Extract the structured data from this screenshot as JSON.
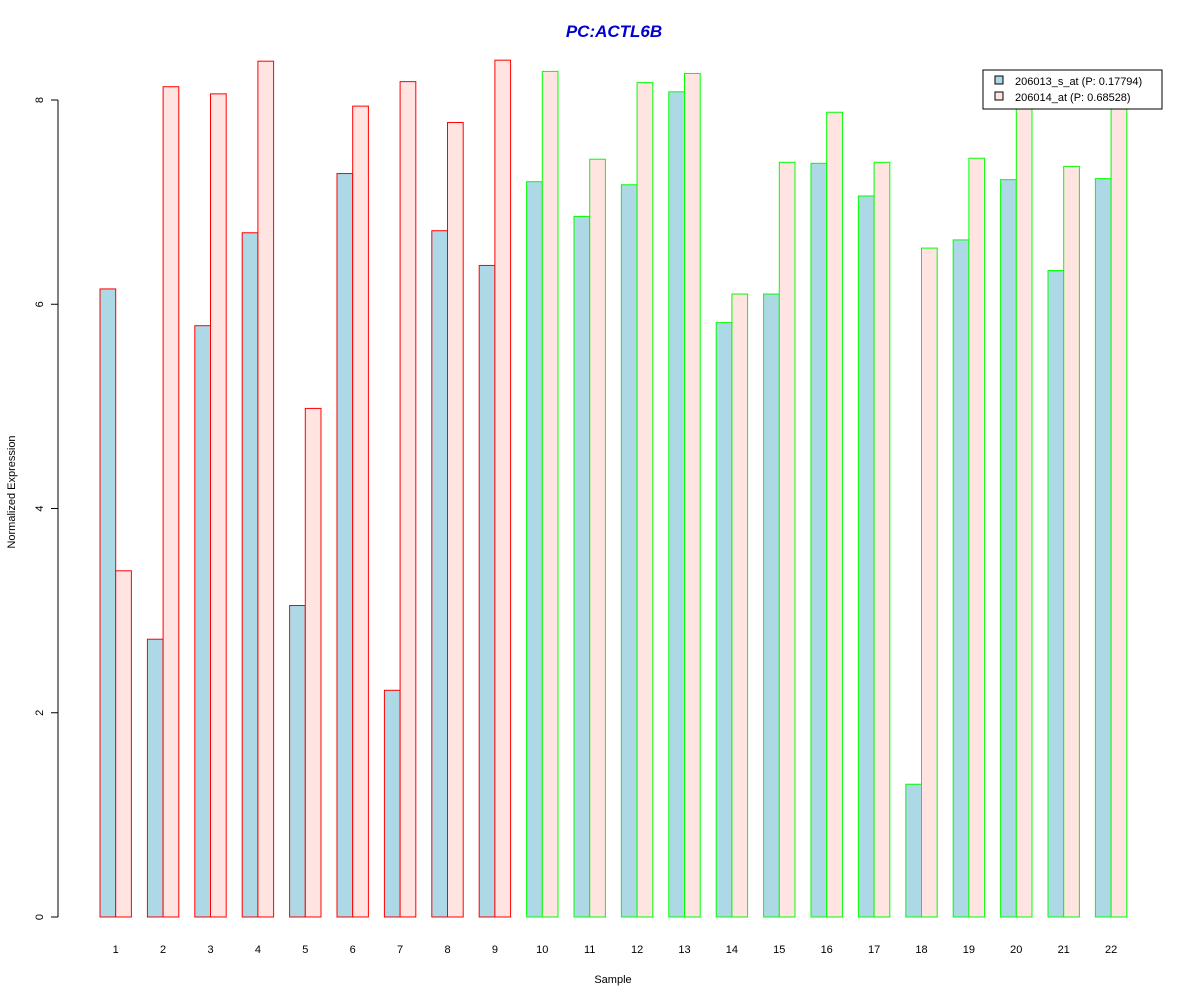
{
  "chart_data": {
    "type": "bar",
    "title": "PC:ACTL6B",
    "xlabel": "Sample",
    "ylabel": "Normalized Expression",
    "ylim": [
      0,
      8
    ],
    "yticks": [
      0,
      2,
      4,
      6,
      8
    ],
    "categories": [
      "1",
      "2",
      "3",
      "4",
      "5",
      "6",
      "7",
      "8",
      "9",
      "10",
      "11",
      "12",
      "13",
      "14",
      "15",
      "16",
      "17",
      "18",
      "19",
      "20",
      "21",
      "22"
    ],
    "series": [
      {
        "name": "206013_s_at (P: 0.17794)",
        "fill": "#add8e6",
        "values": [
          6.15,
          2.72,
          5.79,
          6.7,
          3.05,
          7.28,
          2.22,
          6.72,
          6.38,
          7.2,
          6.86,
          7.17,
          8.08,
          5.82,
          6.1,
          7.38,
          7.06,
          1.3,
          6.63,
          7.22,
          6.33,
          7.23
        ]
      },
      {
        "name": "206014_at (P: 0.68528)",
        "fill": "#ffe4e1",
        "values": [
          3.39,
          8.13,
          8.06,
          8.38,
          4.98,
          7.94,
          8.18,
          7.78,
          8.39,
          8.28,
          7.42,
          8.17,
          8.26,
          6.1,
          7.39,
          7.88,
          7.39,
          6.55,
          7.43,
          8.0,
          7.35,
          7.98
        ]
      }
    ],
    "group_border_colors": [
      "#ff0000",
      "#ff0000",
      "#ff0000",
      "#ff0000",
      "#ff0000",
      "#ff0000",
      "#ff0000",
      "#ff0000",
      "#ff0000",
      "#00ff00",
      "#00ff00",
      "#00ff00",
      "#00ff00",
      "#00ff00",
      "#00ff00",
      "#00ff00",
      "#00ff00",
      "#00ff00",
      "#00ff00",
      "#00ff00",
      "#00ff00",
      "#00ff00"
    ],
    "title_color": "#0000cd",
    "legend": {
      "position": "top-right",
      "entries": [
        "206013_s_at (P: 0.17794)",
        "206014_at (P: 0.68528)"
      ]
    },
    "grid": false
  }
}
